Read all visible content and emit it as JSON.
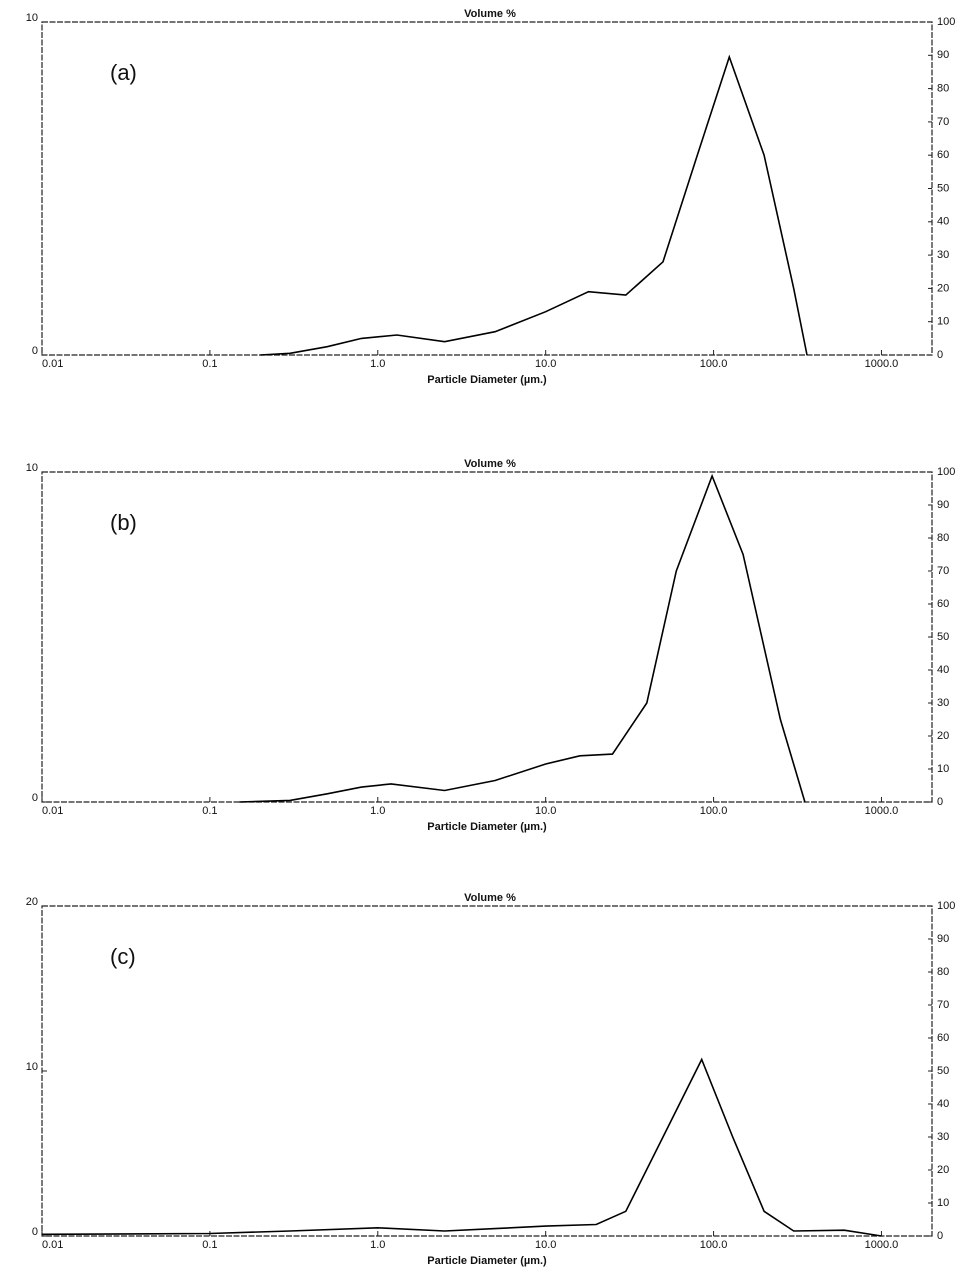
{
  "chart_data": [
    {
      "type": "line",
      "title": "Volume %",
      "xlabel": "Particle Diameter (µm.)",
      "annotation": "(a)",
      "xscale": "log",
      "color": "#000000",
      "x": [
        0.2,
        0.3,
        0.5,
        0.8,
        1.3,
        2.5,
        5,
        10,
        18,
        30,
        50,
        80,
        124,
        200,
        300,
        360
      ],
      "values": [
        0,
        0.05,
        0.25,
        0.5,
        0.6,
        0.4,
        0.7,
        1.3,
        1.9,
        1.8,
        2.8,
        6,
        8.95,
        6,
        2,
        0
      ],
      "xlim": [
        0.01,
        2000
      ],
      "xticks": [
        0.01,
        0.1,
        {
          "value": 1,
          "label": "1.0"
        },
        {
          "value": 10,
          "label": "10.0"
        },
        {
          "value": 100,
          "label": "100.0"
        },
        {
          "value": 1000,
          "label": "1000.0"
        }
      ],
      "ylim": [
        0,
        10
      ],
      "yticks": [
        0,
        10
      ],
      "y2lim": [
        0,
        100
      ],
      "y2ticks": [
        0,
        10,
        20,
        30,
        40,
        50,
        60,
        70,
        80,
        90,
        100
      ]
    },
    {
      "type": "line",
      "title": "Volume %",
      "xlabel": "Particle Diameter (µm.)",
      "annotation": "(b)",
      "xscale": "log",
      "color": "#000000",
      "x": [
        0.15,
        0.3,
        0.5,
        0.8,
        1.2,
        2.5,
        5,
        10,
        16,
        25,
        40,
        60,
        98,
        150,
        250,
        350
      ],
      "values": [
        0,
        0.05,
        0.25,
        0.45,
        0.55,
        0.35,
        0.65,
        1.15,
        1.4,
        1.45,
        3,
        7,
        9.88,
        7.5,
        2.5,
        0
      ],
      "xlim": [
        0.01,
        2000
      ],
      "xticks": [
        0.01,
        0.1,
        {
          "value": 1,
          "label": "1.0"
        },
        {
          "value": 10,
          "label": "10.0"
        },
        {
          "value": 100,
          "label": "100.0"
        },
        {
          "value": 1000,
          "label": "1000.0"
        }
      ],
      "ylim": [
        0,
        10
      ],
      "yticks": [
        0,
        10
      ],
      "y2lim": [
        0,
        100
      ],
      "y2ticks": [
        0,
        10,
        20,
        30,
        40,
        50,
        60,
        70,
        80,
        90,
        100
      ]
    },
    {
      "type": "line",
      "title": "Volume %",
      "xlabel": "Particle Diameter (µm.)",
      "annotation": "(c)",
      "xscale": "log",
      "color": "#000000",
      "x": [
        0.01,
        0.1,
        0.3,
        1,
        2.5,
        5,
        10,
        20,
        30,
        50,
        85,
        130,
        200,
        300,
        600,
        1000
      ],
      "values": [
        0.1,
        0.15,
        0.3,
        0.5,
        0.3,
        0.45,
        0.6,
        0.7,
        1.5,
        6,
        10.7,
        6,
        1.5,
        0.3,
        0.35,
        0
      ],
      "xlim": [
        0.01,
        2000
      ],
      "xticks": [
        0.01,
        0.1,
        {
          "value": 1,
          "label": "1.0"
        },
        {
          "value": 10,
          "label": "10.0"
        },
        {
          "value": 100,
          "label": "100.0"
        },
        {
          "value": 1000,
          "label": "1000.0"
        }
      ],
      "ylim": [
        0,
        20
      ],
      "yticks": [
        0,
        10,
        20
      ],
      "y2lim": [
        0,
        100
      ],
      "y2ticks": [
        0,
        10,
        20,
        30,
        40,
        50,
        60,
        70,
        80,
        90,
        100
      ]
    }
  ]
}
